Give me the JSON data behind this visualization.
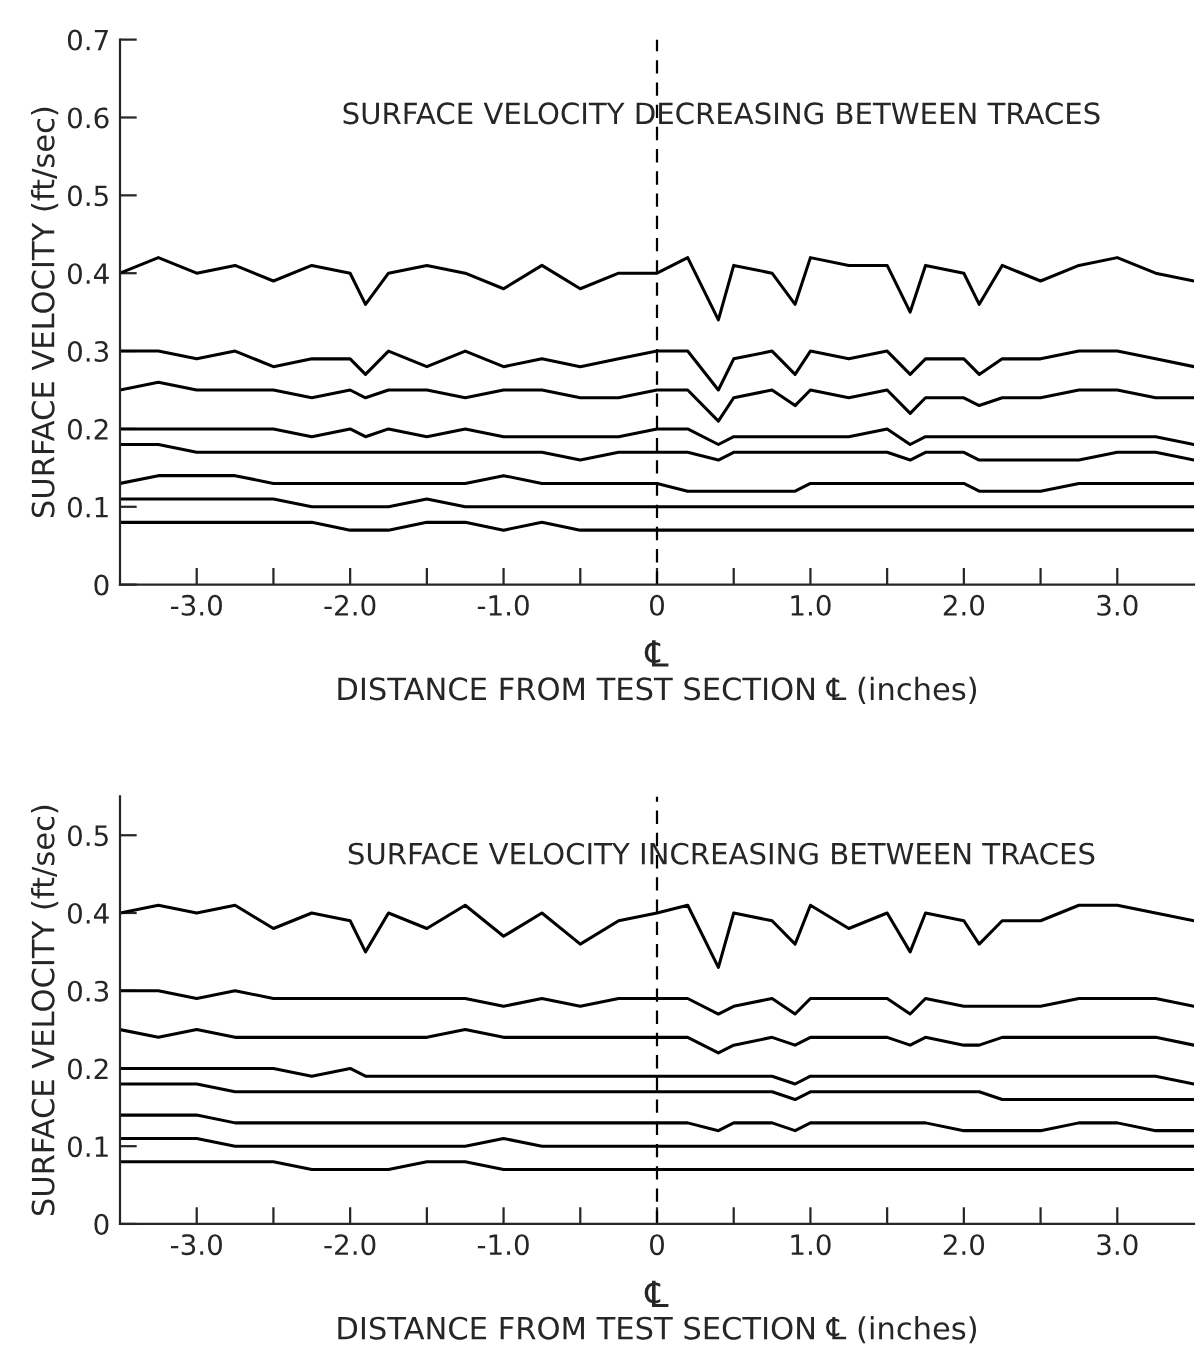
{
  "chart_data": [
    {
      "type": "line",
      "annotations": [
        "SURFACE VELOCITY DECREASING BETWEEN TRACES"
      ],
      "xlabel": "DISTANCE FROM TEST SECTION ℄ (inches)",
      "ylabel": "SURFACE VELOCITY (ft/sec)",
      "x": [
        -3.5,
        -3.25,
        -3.0,
        -2.75,
        -2.5,
        -2.25,
        -2.0,
        -1.9,
        -1.75,
        -1.5,
        -1.25,
        -1.0,
        -0.75,
        -0.5,
        -0.25,
        0,
        0.2,
        0.4,
        0.5,
        0.75,
        0.9,
        1.0,
        1.25,
        1.5,
        1.65,
        1.75,
        2.0,
        2.1,
        2.25,
        2.5,
        2.75,
        3.0,
        3.25,
        3.5
      ],
      "xlim": [
        -3.5,
        3.5
      ],
      "ylim": [
        0,
        0.7
      ],
      "xticks": [
        {
          "value": -3,
          "label": "-3.0"
        },
        {
          "value": -2.5,
          "label": null
        },
        {
          "value": -2,
          "label": "-2.0"
        },
        {
          "value": -1.5,
          "label": null
        },
        {
          "value": -1,
          "label": "-1.0"
        },
        {
          "value": -0.5,
          "label": null
        },
        0,
        {
          "value": 0.5,
          "label": null
        },
        {
          "value": 1,
          "label": "1.0"
        },
        {
          "value": 1.5,
          "label": null
        },
        {
          "value": 2,
          "label": "2.0"
        },
        {
          "value": 2.5,
          "label": null
        },
        {
          "value": 3,
          "label": "3.0"
        }
      ],
      "yticks": [
        0,
        0.1,
        0.2,
        0.3,
        0.4,
        0.5,
        0.6,
        0.7
      ],
      "ref_lines": [
        {
          "axis": "x",
          "value": 0,
          "label": "℄",
          "color": "#000000",
          "line_style": "dashed"
        }
      ],
      "series": [
        {
          "color": "#000000",
          "values": [
            0.4,
            0.42,
            0.4,
            0.41,
            0.39,
            0.41,
            0.4,
            0.36,
            0.4,
            0.41,
            0.4,
            0.38,
            0.41,
            0.38,
            0.4,
            0.4,
            0.42,
            0.34,
            0.41,
            0.4,
            0.36,
            0.42,
            0.41,
            0.41,
            0.35,
            0.41,
            0.4,
            0.36,
            0.41,
            0.39,
            0.41,
            0.42,
            0.4,
            0.39
          ]
        },
        {
          "color": "#000000",
          "values": [
            0.3,
            0.3,
            0.29,
            0.3,
            0.28,
            0.29,
            0.29,
            0.27,
            0.3,
            0.28,
            0.3,
            0.28,
            0.29,
            0.28,
            0.29,
            0.3,
            0.3,
            0.25,
            0.29,
            0.3,
            0.27,
            0.3,
            0.29,
            0.3,
            0.27,
            0.29,
            0.29,
            0.27,
            0.29,
            0.29,
            0.3,
            0.3,
            0.29,
            0.28
          ]
        },
        {
          "color": "#000000",
          "values": [
            0.25,
            0.26,
            0.25,
            0.25,
            0.25,
            0.24,
            0.25,
            0.24,
            0.25,
            0.25,
            0.24,
            0.25,
            0.25,
            0.24,
            0.24,
            0.25,
            0.25,
            0.21,
            0.24,
            0.25,
            0.23,
            0.25,
            0.24,
            0.25,
            0.22,
            0.24,
            0.24,
            0.23,
            0.24,
            0.24,
            0.25,
            0.25,
            0.24,
            0.24
          ]
        },
        {
          "color": "#000000",
          "values": [
            0.2,
            0.2,
            0.2,
            0.2,
            0.2,
            0.19,
            0.2,
            0.19,
            0.2,
            0.19,
            0.2,
            0.19,
            0.19,
            0.19,
            0.19,
            0.2,
            0.2,
            0.18,
            0.19,
            0.19,
            0.19,
            0.19,
            0.19,
            0.2,
            0.18,
            0.19,
            0.19,
            0.19,
            0.19,
            0.19,
            0.19,
            0.19,
            0.19,
            0.18
          ]
        },
        {
          "color": "#000000",
          "values": [
            0.18,
            0.18,
            0.17,
            0.17,
            0.17,
            0.17,
            0.17,
            0.17,
            0.17,
            0.17,
            0.17,
            0.17,
            0.17,
            0.16,
            0.17,
            0.17,
            0.17,
            0.16,
            0.17,
            0.17,
            0.17,
            0.17,
            0.17,
            0.17,
            0.16,
            0.17,
            0.17,
            0.16,
            0.16,
            0.16,
            0.16,
            0.17,
            0.17,
            0.16
          ]
        },
        {
          "color": "#000000",
          "values": [
            0.13,
            0.14,
            0.14,
            0.14,
            0.13,
            0.13,
            0.13,
            0.13,
            0.13,
            0.13,
            0.13,
            0.14,
            0.13,
            0.13,
            0.13,
            0.13,
            0.12,
            0.12,
            0.12,
            0.12,
            0.12,
            0.13,
            0.13,
            0.13,
            0.13,
            0.13,
            0.13,
            0.12,
            0.12,
            0.12,
            0.13,
            0.13,
            0.13,
            0.13
          ]
        },
        {
          "color": "#000000",
          "values": [
            0.11,
            0.11,
            0.11,
            0.11,
            0.11,
            0.1,
            0.1,
            0.1,
            0.1,
            0.11,
            0.1,
            0.1,
            0.1,
            0.1,
            0.1,
            0.1,
            0.1,
            0.1,
            0.1,
            0.1,
            0.1,
            0.1,
            0.1,
            0.1,
            0.1,
            0.1,
            0.1,
            0.1,
            0.1,
            0.1,
            0.1,
            0.1,
            0.1,
            0.1
          ]
        },
        {
          "color": "#000000",
          "values": [
            0.08,
            0.08,
            0.08,
            0.08,
            0.08,
            0.08,
            0.07,
            0.07,
            0.07,
            0.08,
            0.08,
            0.07,
            0.08,
            0.07,
            0.07,
            0.07,
            0.07,
            0.07,
            0.07,
            0.07,
            0.07,
            0.07,
            0.07,
            0.07,
            0.07,
            0.07,
            0.07,
            0.07,
            0.07,
            0.07,
            0.07,
            0.07,
            0.07,
            0.07
          ]
        }
      ]
    },
    {
      "type": "line",
      "annotations": [
        "SURFACE VELOCITY INCREASING BETWEEN TRACES"
      ],
      "xlabel": "DISTANCE FROM TEST SECTION ℄ (inches)",
      "ylabel": "SURFACE VELOCITY (ft/sec)",
      "x": [
        -3.5,
        -3.25,
        -3.0,
        -2.75,
        -2.5,
        -2.25,
        -2.0,
        -1.9,
        -1.75,
        -1.5,
        -1.25,
        -1.0,
        -0.75,
        -0.5,
        -0.25,
        0,
        0.2,
        0.4,
        0.5,
        0.75,
        0.9,
        1.0,
        1.25,
        1.5,
        1.65,
        1.75,
        2.0,
        2.1,
        2.25,
        2.5,
        2.75,
        3.0,
        3.25,
        3.5
      ],
      "xlim": [
        -3.5,
        3.5
      ],
      "ylim": [
        0,
        0.55
      ],
      "xticks": [
        {
          "value": -3,
          "label": "-3.0"
        },
        {
          "value": -2.5,
          "label": null
        },
        {
          "value": -2,
          "label": "-2.0"
        },
        {
          "value": -1.5,
          "label": null
        },
        {
          "value": -1,
          "label": "-1.0"
        },
        {
          "value": -0.5,
          "label": null
        },
        0,
        {
          "value": 0.5,
          "label": null
        },
        {
          "value": 1,
          "label": "1.0"
        },
        {
          "value": 1.5,
          "label": null
        },
        {
          "value": 2,
          "label": "2.0"
        },
        {
          "value": 2.5,
          "label": null
        },
        {
          "value": 3,
          "label": "3.0"
        }
      ],
      "yticks": [
        0,
        0.1,
        0.2,
        0.3,
        0.4,
        0.5
      ],
      "ref_lines": [
        {
          "axis": "x",
          "value": 0,
          "label": "℄",
          "color": "#000000",
          "line_style": "dashed"
        }
      ],
      "series": [
        {
          "color": "#000000",
          "values": [
            0.4,
            0.41,
            0.4,
            0.41,
            0.38,
            0.4,
            0.39,
            0.35,
            0.4,
            0.38,
            0.41,
            0.37,
            0.4,
            0.36,
            0.39,
            0.4,
            0.41,
            0.33,
            0.4,
            0.39,
            0.36,
            0.41,
            0.38,
            0.4,
            0.35,
            0.4,
            0.39,
            0.36,
            0.39,
            0.39,
            0.41,
            0.41,
            0.4,
            0.39
          ]
        },
        {
          "color": "#000000",
          "values": [
            0.3,
            0.3,
            0.29,
            0.3,
            0.29,
            0.29,
            0.29,
            0.29,
            0.29,
            0.29,
            0.29,
            0.28,
            0.29,
            0.28,
            0.29,
            0.29,
            0.29,
            0.27,
            0.28,
            0.29,
            0.27,
            0.29,
            0.29,
            0.29,
            0.27,
            0.29,
            0.28,
            0.28,
            0.28,
            0.28,
            0.29,
            0.29,
            0.29,
            0.28
          ]
        },
        {
          "color": "#000000",
          "values": [
            0.25,
            0.24,
            0.25,
            0.24,
            0.24,
            0.24,
            0.24,
            0.24,
            0.24,
            0.24,
            0.25,
            0.24,
            0.24,
            0.24,
            0.24,
            0.24,
            0.24,
            0.22,
            0.23,
            0.24,
            0.23,
            0.24,
            0.24,
            0.24,
            0.23,
            0.24,
            0.23,
            0.23,
            0.24,
            0.24,
            0.24,
            0.24,
            0.24,
            0.23
          ]
        },
        {
          "color": "#000000",
          "values": [
            0.2,
            0.2,
            0.2,
            0.2,
            0.2,
            0.19,
            0.2,
            0.19,
            0.19,
            0.19,
            0.19,
            0.19,
            0.19,
            0.19,
            0.19,
            0.19,
            0.19,
            0.19,
            0.19,
            0.19,
            0.18,
            0.19,
            0.19,
            0.19,
            0.19,
            0.19,
            0.19,
            0.19,
            0.19,
            0.19,
            0.19,
            0.19,
            0.19,
            0.18
          ]
        },
        {
          "color": "#000000",
          "values": [
            0.18,
            0.18,
            0.18,
            0.17,
            0.17,
            0.17,
            0.17,
            0.17,
            0.17,
            0.17,
            0.17,
            0.17,
            0.17,
            0.17,
            0.17,
            0.17,
            0.17,
            0.17,
            0.17,
            0.17,
            0.16,
            0.17,
            0.17,
            0.17,
            0.17,
            0.17,
            0.17,
            0.17,
            0.16,
            0.16,
            0.16,
            0.16,
            0.16,
            0.16
          ]
        },
        {
          "color": "#000000",
          "values": [
            0.14,
            0.14,
            0.14,
            0.13,
            0.13,
            0.13,
            0.13,
            0.13,
            0.13,
            0.13,
            0.13,
            0.13,
            0.13,
            0.13,
            0.13,
            0.13,
            0.13,
            0.12,
            0.13,
            0.13,
            0.12,
            0.13,
            0.13,
            0.13,
            0.13,
            0.13,
            0.12,
            0.12,
            0.12,
            0.12,
            0.13,
            0.13,
            0.12,
            0.12
          ]
        },
        {
          "color": "#000000",
          "values": [
            0.11,
            0.11,
            0.11,
            0.1,
            0.1,
            0.1,
            0.1,
            0.1,
            0.1,
            0.1,
            0.1,
            0.11,
            0.1,
            0.1,
            0.1,
            0.1,
            0.1,
            0.1,
            0.1,
            0.1,
            0.1,
            0.1,
            0.1,
            0.1,
            0.1,
            0.1,
            0.1,
            0.1,
            0.1,
            0.1,
            0.1,
            0.1,
            0.1,
            0.1
          ]
        },
        {
          "color": "#000000",
          "values": [
            0.08,
            0.08,
            0.08,
            0.08,
            0.08,
            0.07,
            0.07,
            0.07,
            0.07,
            0.08,
            0.08,
            0.07,
            0.07,
            0.07,
            0.07,
            0.07,
            0.07,
            0.07,
            0.07,
            0.07,
            0.07,
            0.07,
            0.07,
            0.07,
            0.07,
            0.07,
            0.07,
            0.07,
            0.07,
            0.07,
            0.07,
            0.07,
            0.07,
            0.07
          ]
        }
      ]
    }
  ]
}
